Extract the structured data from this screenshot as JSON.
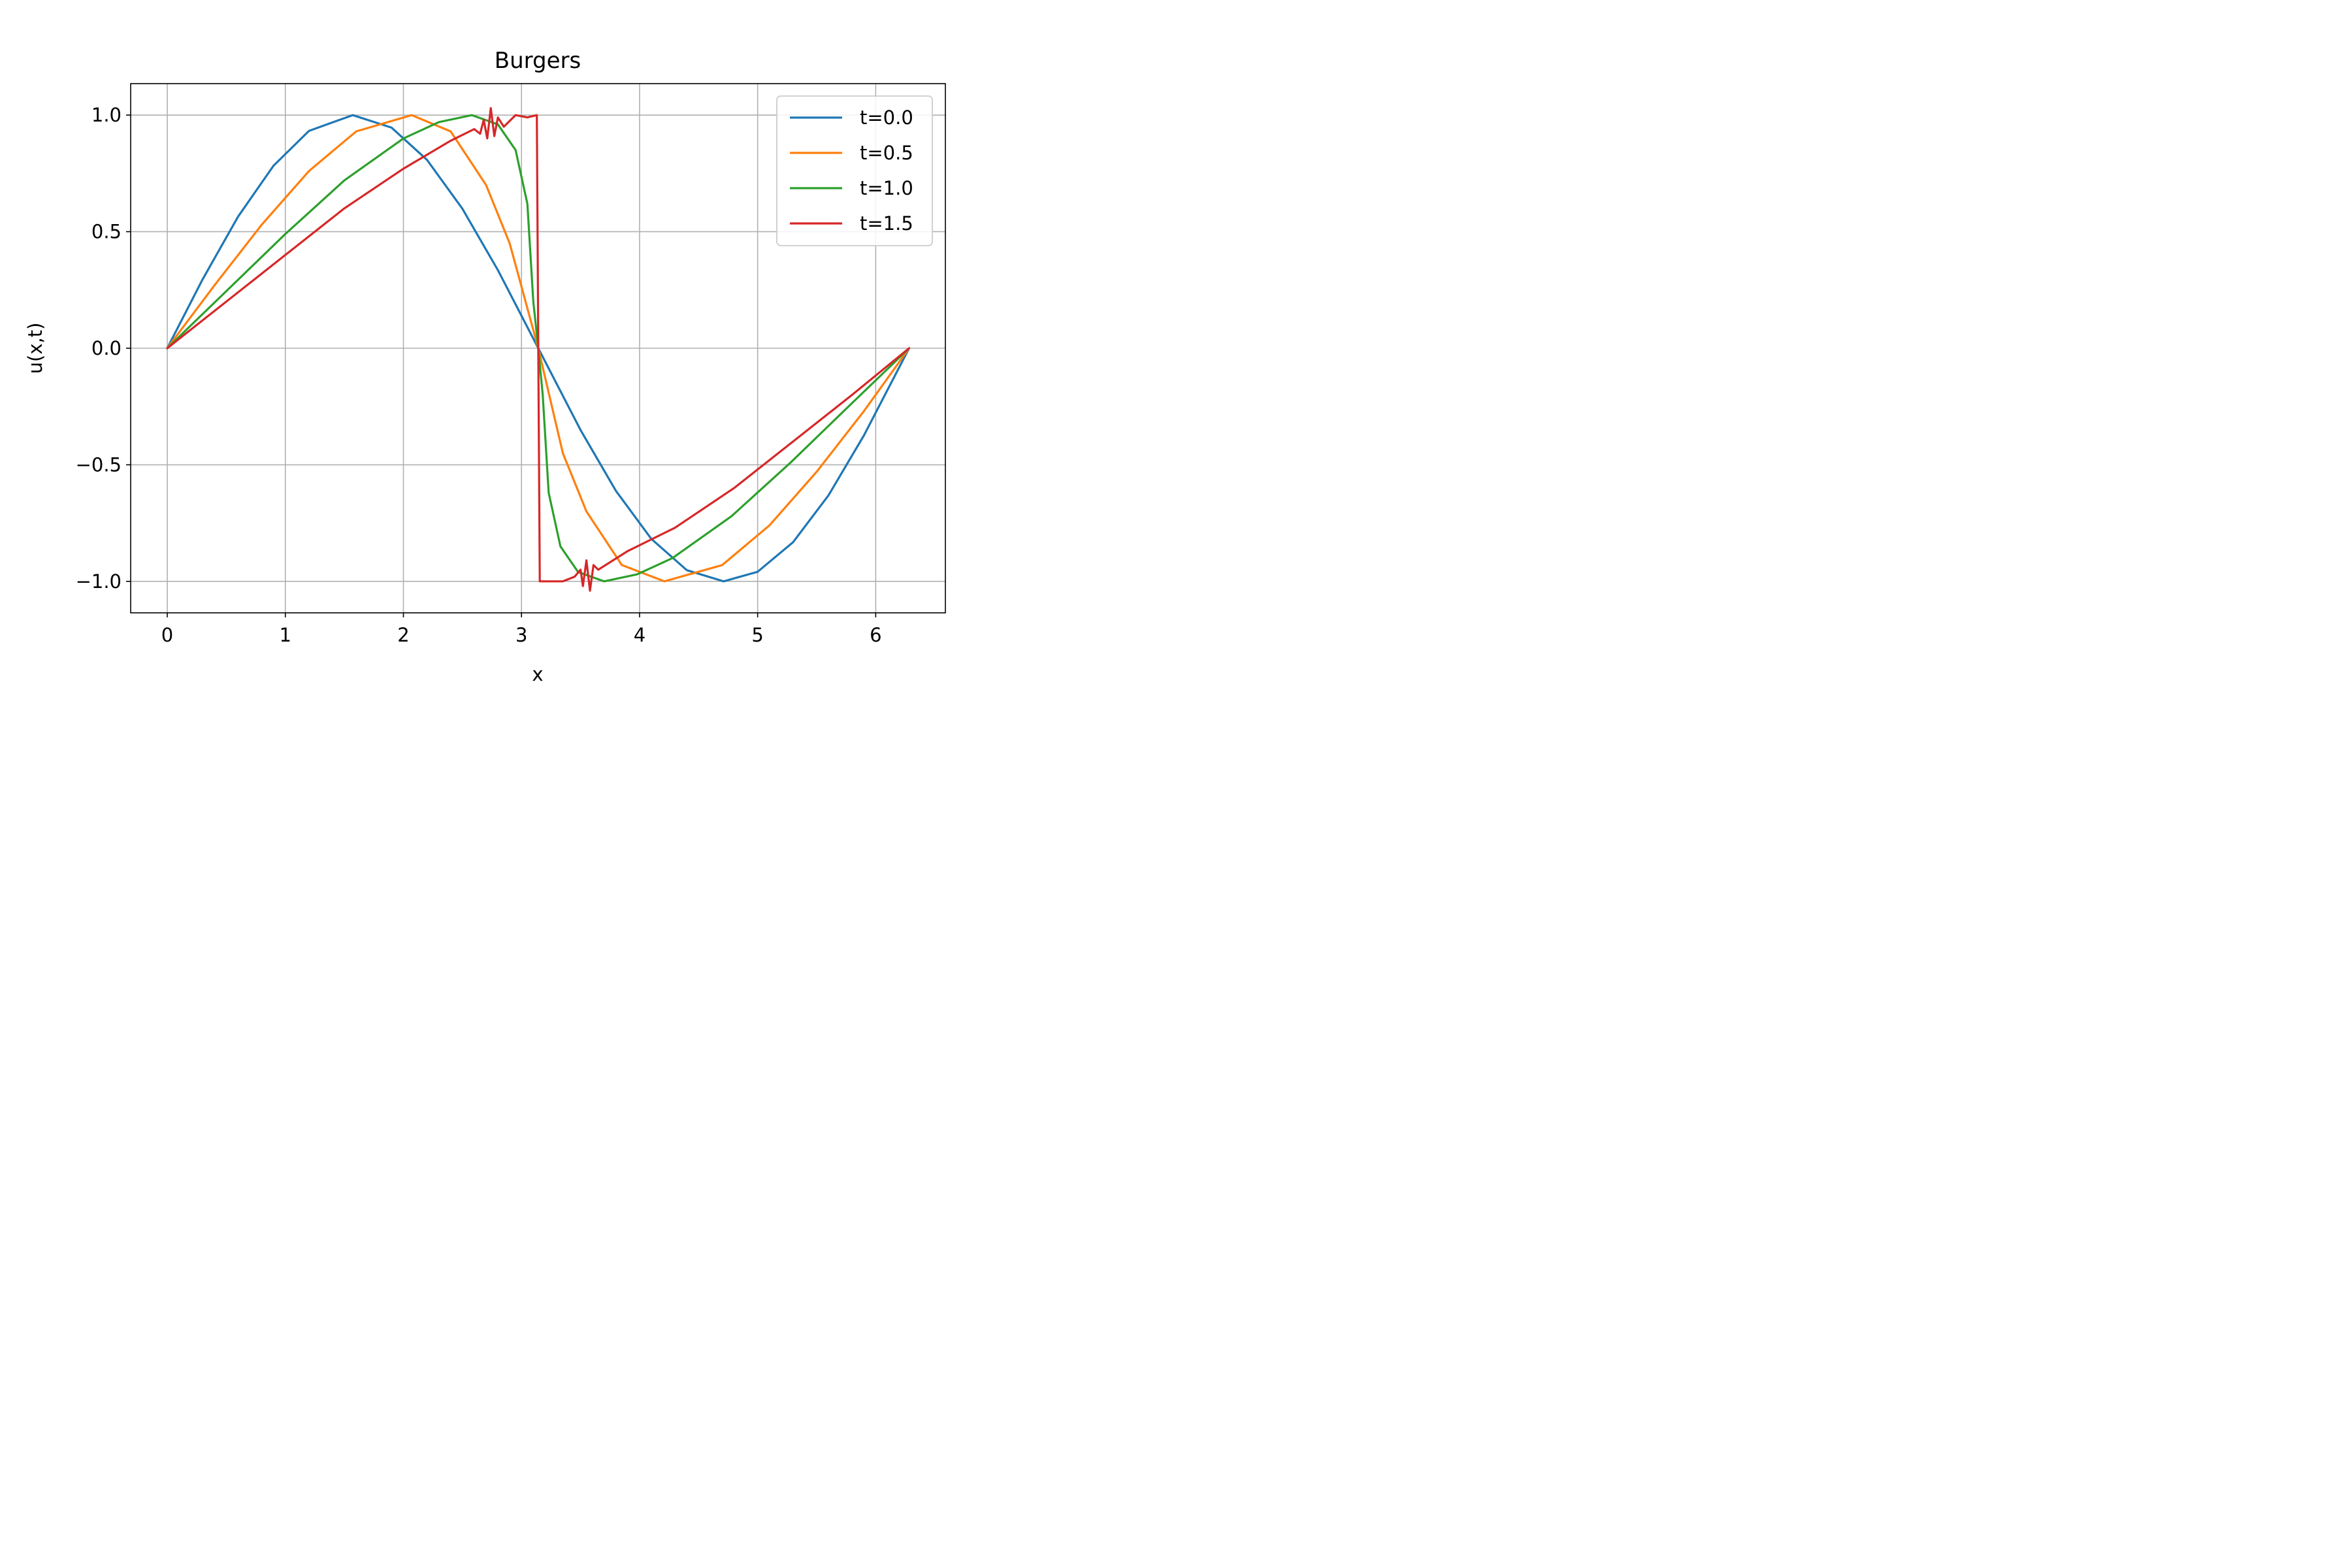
{
  "chart_data": {
    "type": "line",
    "title": "Burgers",
    "xlabel": "x",
    "ylabel": "u(x,t)",
    "xlim": [
      -0.31,
      6.59
    ],
    "ylim": [
      -1.135,
      1.135
    ],
    "xticks": [
      0,
      1,
      2,
      3,
      4,
      5,
      6
    ],
    "xtick_labels": [
      "0",
      "1",
      "2",
      "3",
      "4",
      "5",
      "6"
    ],
    "yticks": [
      -1.0,
      -0.5,
      0.0,
      0.5,
      1.0
    ],
    "ytick_labels": [
      "−1.0",
      "−0.5",
      "0.0",
      "0.5",
      "1.0"
    ],
    "grid": true,
    "legend_position": "top-right",
    "series": [
      {
        "name": "t=0.0",
        "color": "#1f77b4",
        "points": [
          [
            0,
            0
          ],
          [
            0.3,
            0.296
          ],
          [
            0.6,
            0.565
          ],
          [
            0.9,
            0.783
          ],
          [
            1.2,
            0.932
          ],
          [
            1.571,
            1.0
          ],
          [
            1.9,
            0.946
          ],
          [
            2.2,
            0.808
          ],
          [
            2.5,
            0.598
          ],
          [
            2.8,
            0.335
          ],
          [
            3.142,
            0.0
          ],
          [
            3.5,
            -0.351
          ],
          [
            3.8,
            -0.612
          ],
          [
            4.1,
            -0.818
          ],
          [
            4.4,
            -0.952
          ],
          [
            4.712,
            -1.0
          ],
          [
            5.0,
            -0.959
          ],
          [
            5.3,
            -0.832
          ],
          [
            5.6,
            -0.631
          ],
          [
            5.9,
            -0.374
          ],
          [
            6.283,
            0.0
          ]
        ]
      },
      {
        "name": "t=0.5",
        "color": "#ff7f0e",
        "points": [
          [
            0,
            0
          ],
          [
            0.4,
            0.27
          ],
          [
            0.8,
            0.53
          ],
          [
            1.2,
            0.76
          ],
          [
            1.6,
            0.93
          ],
          [
            2.07,
            1.0
          ],
          [
            2.4,
            0.93
          ],
          [
            2.7,
            0.7
          ],
          [
            2.9,
            0.45
          ],
          [
            3.142,
            0.0
          ],
          [
            3.35,
            -0.45
          ],
          [
            3.55,
            -0.7
          ],
          [
            3.85,
            -0.93
          ],
          [
            4.21,
            -1.0
          ],
          [
            4.7,
            -0.93
          ],
          [
            5.1,
            -0.76
          ],
          [
            5.5,
            -0.53
          ],
          [
            5.9,
            -0.27
          ],
          [
            6.283,
            0.0
          ]
        ]
      },
      {
        "name": "t=1.0",
        "color": "#2ca02c",
        "points": [
          [
            0,
            0
          ],
          [
            0.5,
            0.245
          ],
          [
            1.0,
            0.49
          ],
          [
            1.5,
            0.72
          ],
          [
            2.0,
            0.9
          ],
          [
            2.3,
            0.97
          ],
          [
            2.58,
            1.0
          ],
          [
            2.8,
            0.96
          ],
          [
            2.95,
            0.85
          ],
          [
            3.05,
            0.62
          ],
          [
            3.1,
            0.2
          ],
          [
            3.142,
            0.0
          ],
          [
            3.18,
            -0.2
          ],
          [
            3.23,
            -0.62
          ],
          [
            3.33,
            -0.85
          ],
          [
            3.48,
            -0.96
          ],
          [
            3.7,
            -1.0
          ],
          [
            3.98,
            -0.97
          ],
          [
            4.28,
            -0.9
          ],
          [
            4.78,
            -0.72
          ],
          [
            5.28,
            -0.49
          ],
          [
            5.78,
            -0.245
          ],
          [
            6.283,
            0.0
          ]
        ]
      },
      {
        "name": "t=1.5",
        "color": "#d62728",
        "points": [
          [
            0,
            0
          ],
          [
            0.5,
            0.2
          ],
          [
            1.0,
            0.4
          ],
          [
            1.5,
            0.6
          ],
          [
            2.0,
            0.77
          ],
          [
            2.4,
            0.89
          ],
          [
            2.6,
            0.94
          ],
          [
            2.65,
            0.92
          ],
          [
            2.68,
            0.98
          ],
          [
            2.71,
            0.9
          ],
          [
            2.74,
            1.03
          ],
          [
            2.77,
            0.91
          ],
          [
            2.8,
            0.99
          ],
          [
            2.85,
            0.95
          ],
          [
            2.95,
            1.0
          ],
          [
            3.05,
            0.99
          ],
          [
            3.13,
            1.0
          ],
          [
            3.142,
            0.0
          ],
          [
            3.155,
            -1.0
          ],
          [
            3.25,
            -1.0
          ],
          [
            3.35,
            -1.0
          ],
          [
            3.45,
            -0.98
          ],
          [
            3.5,
            -0.95
          ],
          [
            3.52,
            -1.02
          ],
          [
            3.55,
            -0.91
          ],
          [
            3.58,
            -1.04
          ],
          [
            3.61,
            -0.93
          ],
          [
            3.65,
            -0.95
          ],
          [
            3.9,
            -0.87
          ],
          [
            4.3,
            -0.77
          ],
          [
            4.8,
            -0.6
          ],
          [
            5.3,
            -0.4
          ],
          [
            5.8,
            -0.2
          ],
          [
            6.283,
            0.0
          ]
        ]
      }
    ]
  }
}
